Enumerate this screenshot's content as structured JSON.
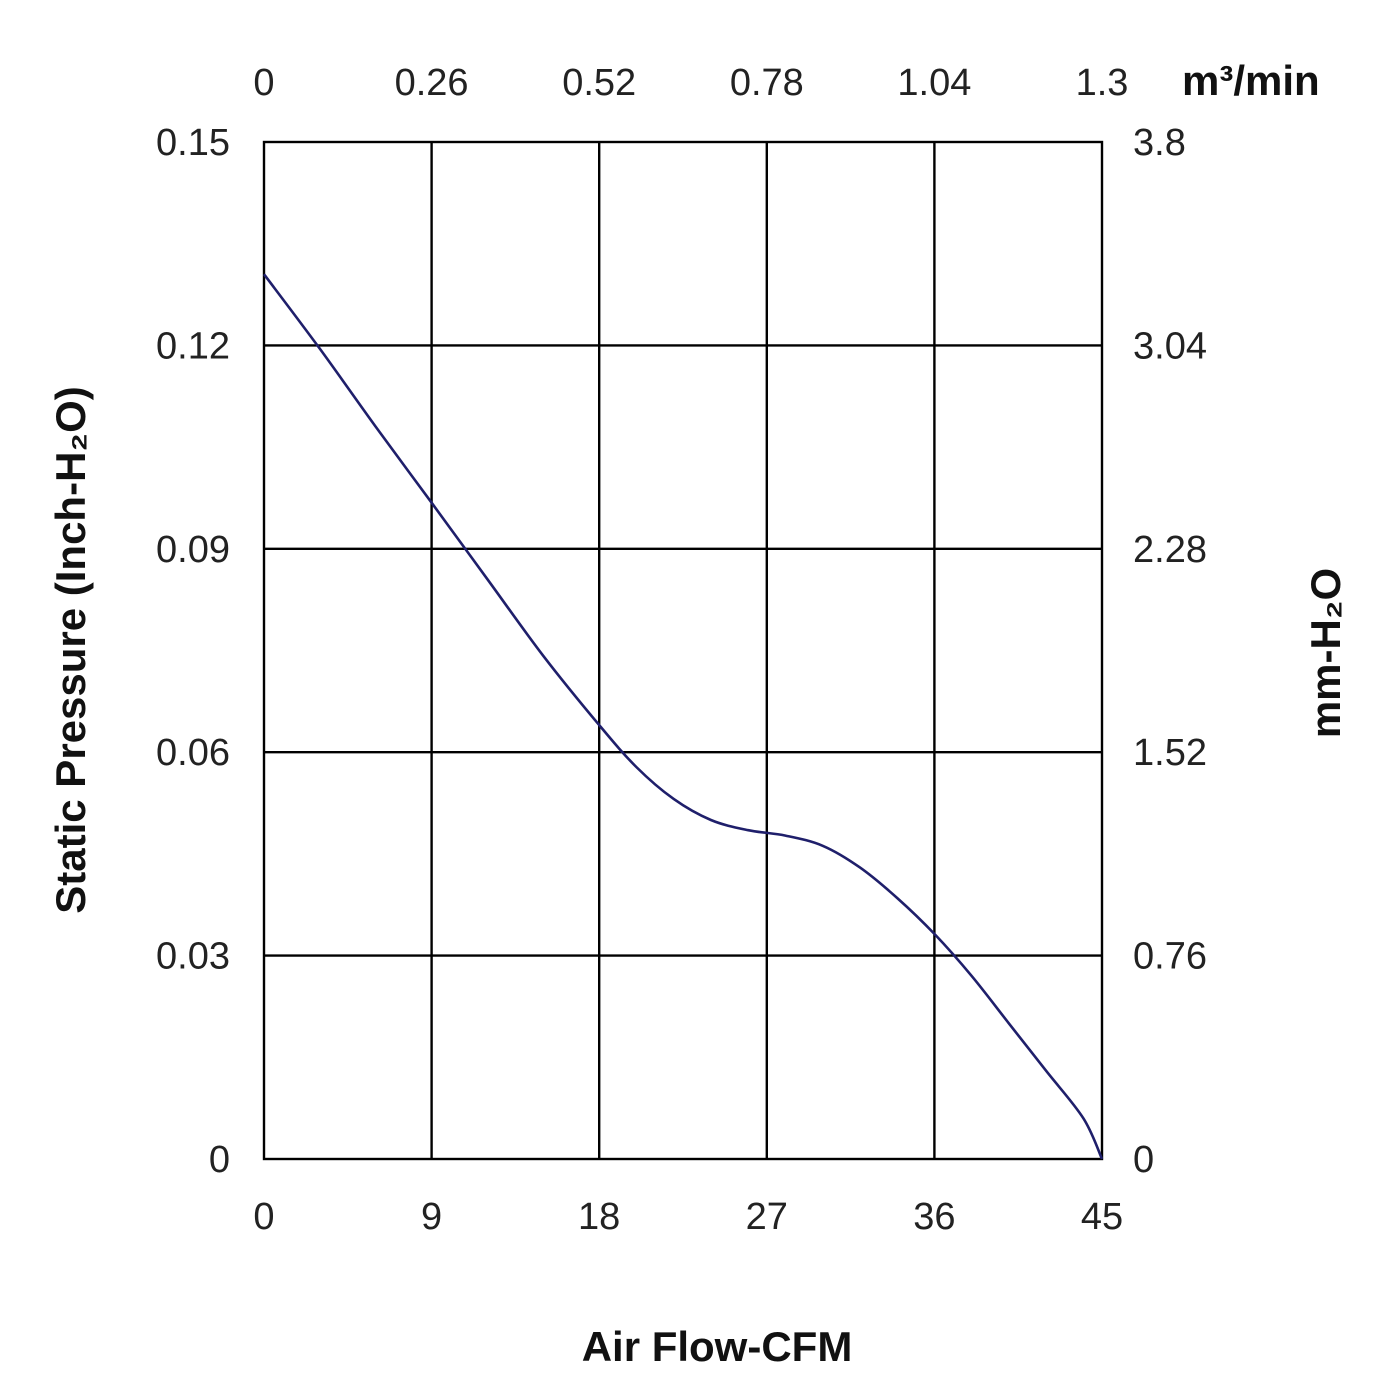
{
  "chart_data": {
    "type": "line",
    "title": "",
    "xlabel": "Air Flow-CFM",
    "ylabel": "Static Pressure (Inch-H₂O)",
    "x2label": "m³/min",
    "y2label": "mm-H₂O",
    "xlim": [
      0,
      45
    ],
    "ylim": [
      0,
      0.15
    ],
    "x_ticks": [
      "0",
      "9",
      "18",
      "27",
      "36",
      "45"
    ],
    "y_ticks": [
      "0",
      "0.03",
      "0.06",
      "0.09",
      "0.12",
      "0.15"
    ],
    "x2_ticks": [
      "0",
      "0.26",
      "0.52",
      "0.78",
      "1.04",
      "1.3"
    ],
    "y2_ticks": [
      "0",
      "0.76",
      "1.52",
      "2.28",
      "3.04",
      "3.8"
    ],
    "grid": true,
    "series": [
      {
        "color": "#1f1f6b",
        "x": [
          0,
          3,
          6,
          9,
          12,
          15,
          18,
          20,
          22,
          24,
          26,
          28,
          30,
          32,
          34,
          36,
          38,
          40,
          42,
          44,
          45
        ],
        "y": [
          0.1305,
          0.1195,
          0.108,
          0.0968,
          0.0855,
          0.0742,
          0.064,
          0.0578,
          0.0531,
          0.05,
          0.0485,
          0.0477,
          0.0462,
          0.043,
          0.0385,
          0.0332,
          0.027,
          0.02,
          0.013,
          0.006,
          0.0
        ]
      }
    ]
  }
}
